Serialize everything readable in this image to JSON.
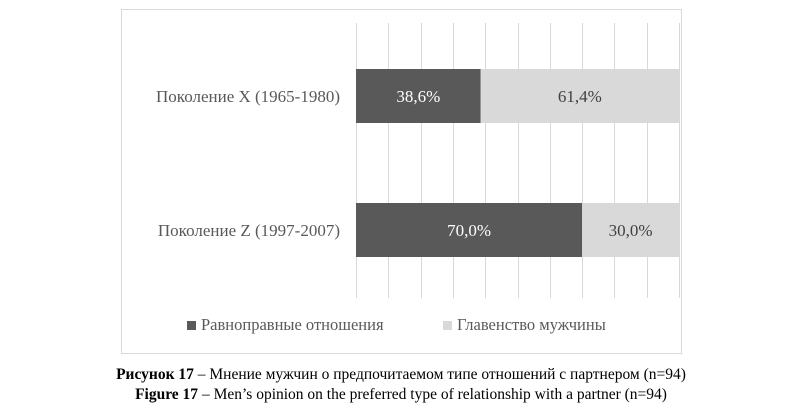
{
  "chart_data": {
    "type": "bar",
    "orientation": "horizontal",
    "stacked": true,
    "categories": [
      "Поколение X (1965-1980)",
      "Поколение Z (1997-2007)"
    ],
    "series": [
      {
        "name": "Равноправные отношения",
        "values": [
          38.6,
          70.0
        ],
        "labels": [
          "38,6%",
          "70,0%"
        ],
        "color": "#595959",
        "label_color": "#ffffff"
      },
      {
        "name": "Главенство мужчины",
        "values": [
          61.4,
          30.0
        ],
        "labels": [
          "61,4%",
          "30,0%"
        ],
        "color": "#d9d9d9",
        "label_color": "#404040"
      }
    ],
    "xlim": [
      0,
      100
    ],
    "grid": true,
    "gridline_color": "#d9d9d9",
    "legend_position": "bottom"
  },
  "caption": {
    "ru_label": "Рисунок 17",
    "ru_text": " – Мнение мужчин о предпочитаемом типе отношений с партнером (n=94)",
    "en_label": "Figure 17",
    "en_text": " – Men’s opinion on the preferred type of relationship with a partner (n=94)"
  }
}
